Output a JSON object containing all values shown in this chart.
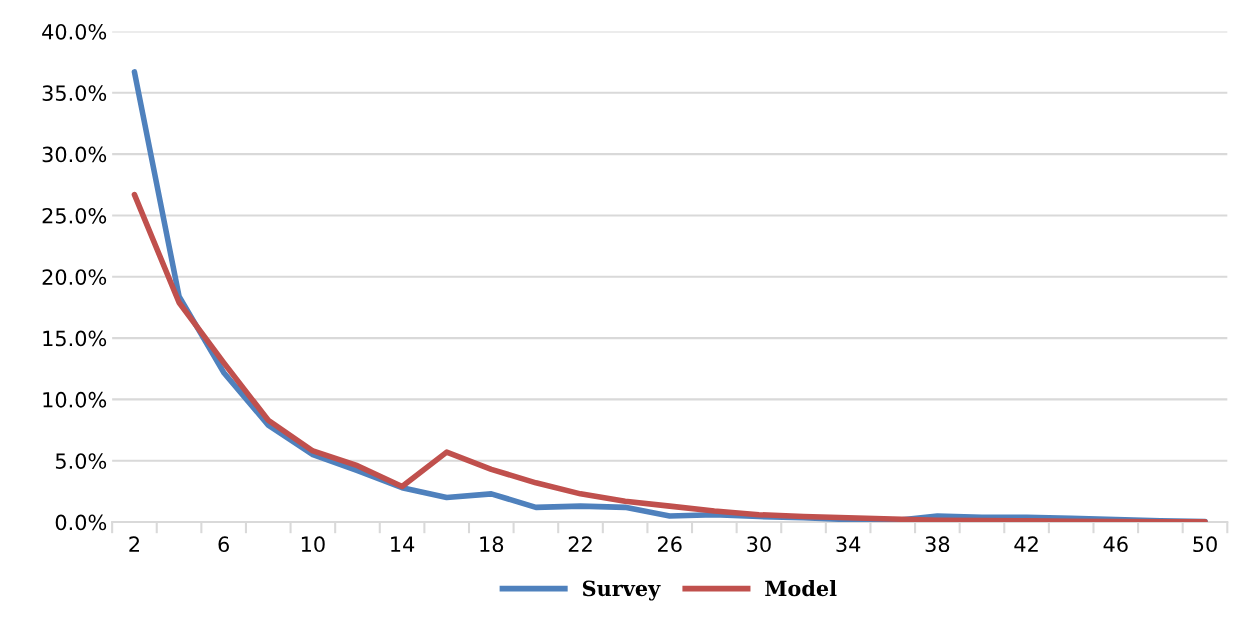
{
  "chart_data": {
    "type": "line",
    "categories": [
      "2",
      null,
      "6",
      null,
      "10",
      null,
      "14",
      null,
      "18",
      null,
      "22",
      null,
      "26",
      null,
      "30",
      null,
      "34",
      null,
      "38",
      null,
      "42",
      null,
      "46",
      null,
      "50"
    ],
    "series": [
      {
        "name": "Survey",
        "color": "#4f81bd",
        "values": [
          36.7,
          18.4,
          12.2,
          7.9,
          5.5,
          4.2,
          2.8,
          2.0,
          2.3,
          1.2,
          1.3,
          1.2,
          0.5,
          0.6,
          0.45,
          0.35,
          0.2,
          0.1,
          0.5,
          0.4,
          0.4,
          0.3,
          0.2,
          0.1,
          0.05
        ]
      },
      {
        "name": "Model",
        "color": "#c0504d",
        "values": [
          26.7,
          17.9,
          13.0,
          8.3,
          5.8,
          4.6,
          2.9,
          5.7,
          4.3,
          3.2,
          2.3,
          1.7,
          1.3,
          0.9,
          0.6,
          0.45,
          0.35,
          0.25,
          0.15,
          0.12,
          0.1,
          0.07,
          0.05,
          0.03,
          0.03
        ]
      }
    ],
    "ylim": [
      0,
      40
    ],
    "yticks": [
      {
        "value": 0,
        "label": "0.0%"
      },
      {
        "value": 5,
        "label": "5.0%"
      },
      {
        "value": 10,
        "label": "10.0%"
      },
      {
        "value": 15,
        "label": "15.0%"
      },
      {
        "value": 20,
        "label": "20.0%"
      },
      {
        "value": 25,
        "label": "25.0%"
      },
      {
        "value": 30,
        "label": "30.0%"
      },
      {
        "value": 35,
        "label": "35.0%"
      },
      {
        "value": 40,
        "label": "40.0%"
      }
    ],
    "grid": "y",
    "legend": "bottom",
    "marker": "none",
    "line_style": "solid"
  }
}
